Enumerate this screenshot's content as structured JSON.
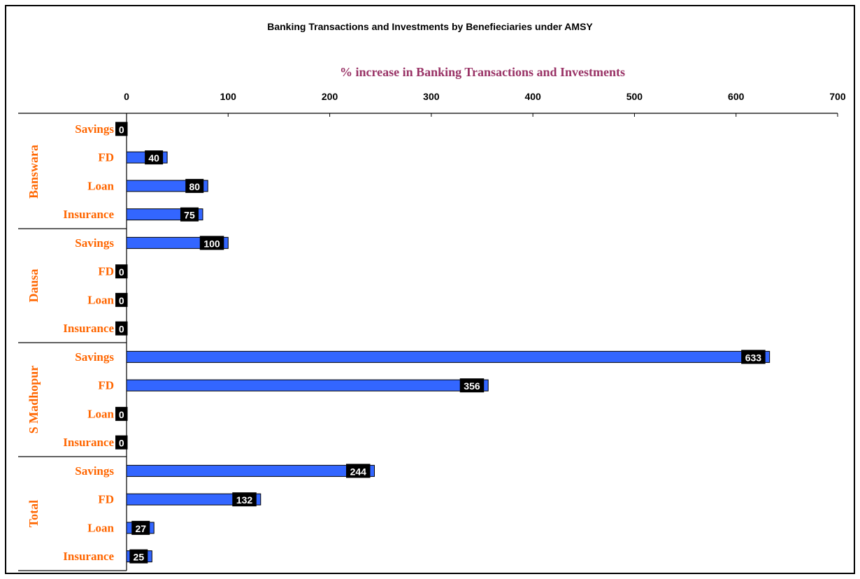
{
  "chart_data": {
    "type": "bar",
    "orientation": "horizontal",
    "title": "Banking Transactions and Investments by Benefieciaries under AMSY",
    "xlabel": "% increase in Banking Transactions and Investments",
    "xlim": [
      0,
      700
    ],
    "x_ticks": [
      "0",
      "100",
      "200",
      "300",
      "400",
      "500",
      "600",
      "700"
    ],
    "axis_position": "top",
    "grid": false,
    "legend": "none",
    "colors": {
      "bar": "#3366ff",
      "category_text": "#ff6600",
      "axis_title": "#993366",
      "label_bg": "#000000",
      "label_text": "#ffffff"
    },
    "groups": [
      {
        "name": "Banswara",
        "categories": [
          "Savings",
          "FD",
          "Loan",
          "Insurance"
        ],
        "values": [
          0,
          40,
          80,
          75
        ],
        "labels": [
          "0",
          "40",
          "80",
          "75"
        ]
      },
      {
        "name": "Dausa",
        "categories": [
          "Savings",
          "FD",
          "Loan",
          "Insurance"
        ],
        "values": [
          100,
          0,
          0,
          0
        ],
        "labels": [
          "100",
          "0",
          "0",
          "0"
        ]
      },
      {
        "name": "S Madhopur",
        "categories": [
          "Savings",
          "FD",
          "Loan",
          "Insurance"
        ],
        "values": [
          633,
          356,
          0,
          0
        ],
        "labels": [
          "633",
          "356",
          "0",
          "0"
        ]
      },
      {
        "name": "Total",
        "categories": [
          "Savings",
          "FD",
          "Loan",
          "Insurance"
        ],
        "values": [
          244,
          132,
          27,
          25
        ],
        "labels": [
          "244",
          "132",
          "27",
          "25"
        ]
      }
    ]
  }
}
